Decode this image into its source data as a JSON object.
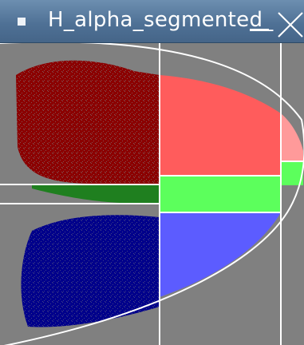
{
  "window": {
    "title": "H_alpha_segmented_",
    "title_bar_color": "#5479a0"
  },
  "titlebar": {
    "menu_icon": "window-menu-icon",
    "minimize_icon": "minimize-icon",
    "close_icon": "close-icon"
  },
  "plot": {
    "background": "#808080",
    "line_color": "#ffffff",
    "regions": [
      {
        "name": "top-left-cluster",
        "color": "#8b0000"
      },
      {
        "name": "top-right-cluster",
        "color": "#ff5c5c"
      },
      {
        "name": "far-right-top",
        "color": "#ff9a9a"
      },
      {
        "name": "middle-left-strip",
        "color": "#1f7f1f"
      },
      {
        "name": "middle-right-band",
        "color": "#5cff5c"
      },
      {
        "name": "bottom-left-cluster",
        "color": "#00008b"
      },
      {
        "name": "bottom-right-cluster",
        "color": "#5c5cff"
      }
    ]
  }
}
